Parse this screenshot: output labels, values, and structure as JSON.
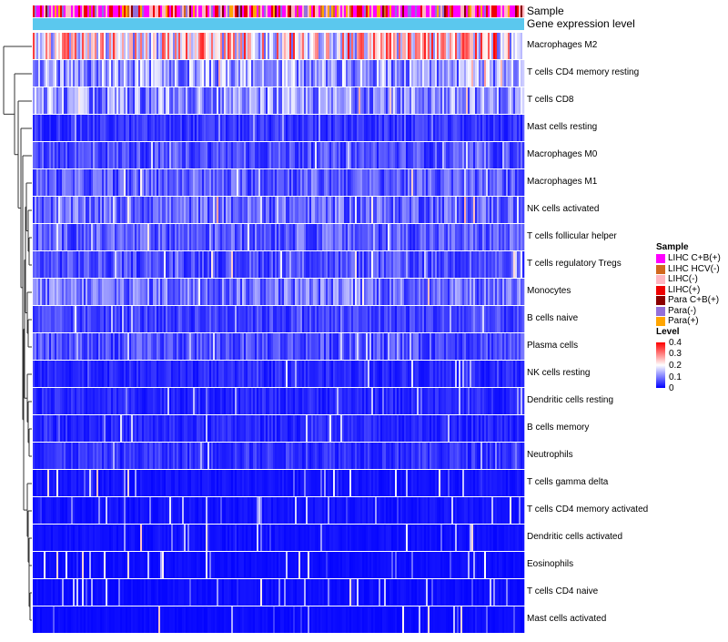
{
  "chart_data": {
    "type": "heatmap",
    "annotation_rows": [
      "Sample",
      "Gene expression level"
    ],
    "rows": [
      "Macrophages M2",
      "T cells CD4 memory resting",
      "T cells CD8",
      "Mast cells resting",
      "Macrophages M0",
      "Macrophages M1",
      "NK cells activated",
      "T cells follicular helper",
      "T cells regulatory  Tregs",
      "Monocytes",
      "B cells naive",
      "Plasma cells",
      "NK cells resting",
      "Dendritic cells resting",
      "B cells memory",
      "Neutrophils",
      "T cells gamma delta",
      "T cells CD4 memory activated",
      "Dendritic cells activated",
      "Eosinophils",
      "T cells CD4 naive",
      "Mast cells activated"
    ],
    "row_mean_levels": [
      0.22,
      0.12,
      0.11,
      0.04,
      0.06,
      0.07,
      0.08,
      0.07,
      0.06,
      0.09,
      0.05,
      0.06,
      0.03,
      0.03,
      0.03,
      0.04,
      0.015,
      0.015,
      0.012,
      0.01,
      0.01,
      0.008
    ],
    "sample_legend": {
      "title": "Sample",
      "items": [
        {
          "label": "LIHC C+B(+)",
          "color": "#ff00ff"
        },
        {
          "label": "LIHC HCV(-)",
          "color": "#d2691e"
        },
        {
          "label": "LIHC(-)",
          "color": "#ffb6c1"
        },
        {
          "label": "LIHC(+)",
          "color": "#ee0000"
        },
        {
          "label": "Para C+B(+)",
          "color": "#8b0000"
        },
        {
          "label": "Para(-)",
          "color": "#9370db"
        },
        {
          "label": "Para(+)",
          "color": "#ffa500"
        }
      ]
    },
    "level_legend": {
      "title": "Level",
      "ticks": [
        "0.4",
        "0.3",
        "0.2",
        "0.1",
        "0"
      ],
      "range": [
        0,
        0.4
      ],
      "colors": [
        "#0000ff",
        "#ffffff",
        "#ff0000"
      ]
    },
    "expression_annotation_color": "#5bc8ee"
  }
}
